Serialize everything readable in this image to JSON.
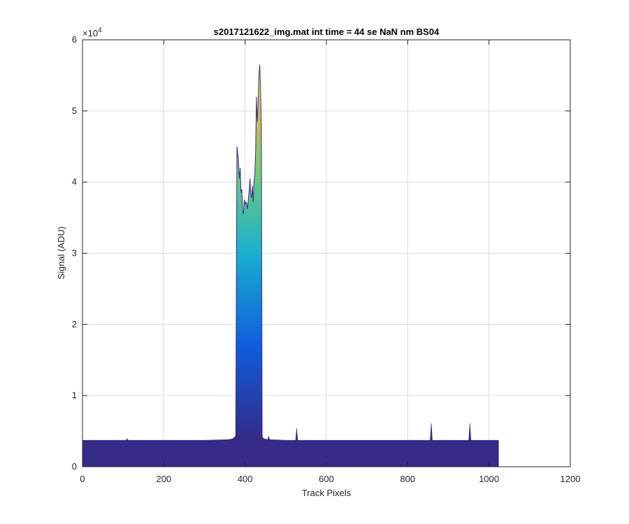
{
  "chart_data": {
    "type": "area",
    "title": "s2017121622_img.mat int time = 44 se  NaN nm BS04",
    "xlabel": "Track Pixels",
    "ylabel": "Signal (ADU)",
    "xlim": [
      0,
      1200
    ],
    "ylim": [
      0,
      60000
    ],
    "x_ticks": [
      "0",
      "200",
      "400",
      "600",
      "800",
      "1000",
      "1200"
    ],
    "y_ticks": [
      "0",
      "1",
      "2",
      "3",
      "4",
      "5",
      "6"
    ],
    "y_exponent_base": "×10",
    "y_exponent_power": "4",
    "grid": true,
    "colormap": "parula (height-mapped: dark blue at baseline to yellow at peak)",
    "colors": {
      "low": "#352A87",
      "blue": "#0F5CDD",
      "cyan": "#1AAFCF",
      "green": "#6CCB7B",
      "yellow": "#F9FB0E",
      "axis": "#262626",
      "grid": "#DDDDDD"
    },
    "series": [
      {
        "x": [
          0,
          100,
          200,
          300,
          340,
          360,
          370,
          377,
          380,
          383,
          386,
          388,
          390,
          392,
          394,
          396,
          398,
          400,
          402,
          404,
          406,
          408,
          410,
          412,
          414,
          416,
          418,
          420,
          422,
          424,
          426,
          428,
          430,
          432,
          434,
          436,
          438,
          440,
          442,
          446,
          455,
          500,
          527,
          560,
          700,
          858,
          900,
          953,
          1000,
          1024
        ],
        "y": [
          3700,
          3700,
          3700,
          3700,
          3750,
          3800,
          3900,
          4300,
          45000,
          43500,
          40500,
          42000,
          38500,
          39000,
          36000,
          35500,
          37500,
          36800,
          37200,
          37000,
          36200,
          37600,
          38800,
          40500,
          38200,
          37800,
          39500,
          37200,
          40000,
          41000,
          44500,
          52000,
          48500,
          51000,
          55000,
          56500,
          53000,
          48000,
          4200,
          3900,
          3800,
          3700,
          3700,
          3700,
          3700,
          3700,
          3700,
          3700,
          3700,
          3700
        ]
      }
    ],
    "spikes": [
      {
        "x": 110,
        "y": 3950
      },
      {
        "x": 458,
        "y": 4300
      },
      {
        "x": 527,
        "y": 5400
      },
      {
        "x": 858,
        "y": 6100
      },
      {
        "x": 953,
        "y": 6100
      }
    ]
  }
}
